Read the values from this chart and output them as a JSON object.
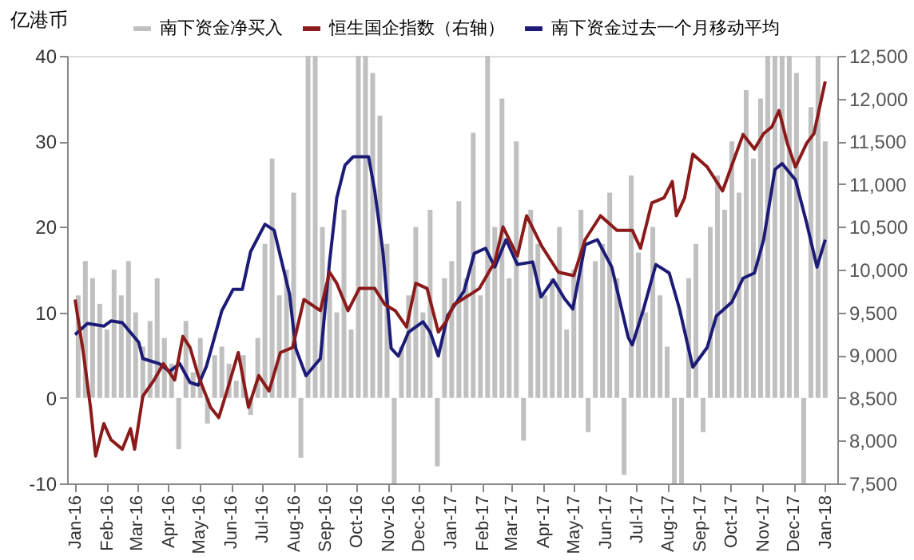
{
  "chart_data": {
    "type": "bar",
    "ylabel": "亿港币",
    "legend": "top",
    "grid": false,
    "ylim": [
      -10,
      40
    ],
    "yticks": [
      -10,
      0,
      10,
      20,
      30,
      40
    ],
    "y2lim": [
      7500,
      12500
    ],
    "y2ticks": [
      {
        "value": 7500,
        "label": "7,500"
      },
      {
        "value": 8000,
        "label": "8,000"
      },
      {
        "value": 8500,
        "label": "8,500"
      },
      {
        "value": 9000,
        "label": "9,000"
      },
      {
        "value": 9500,
        "label": "9,500"
      },
      {
        "value": 10000,
        "label": "10,000"
      },
      {
        "value": 10500,
        "label": "10,500"
      },
      {
        "value": 11000,
        "label": "11,000"
      },
      {
        "value": 11500,
        "label": "11,500"
      },
      {
        "value": 12000,
        "label": "12,000"
      },
      {
        "value": 12500,
        "label": "12,500"
      }
    ],
    "xlim": [
      "2016-01-01",
      "2018-01-05"
    ],
    "xticks": [
      {
        "value": "2016-01-01",
        "label": "Jan-16"
      },
      {
        "value": "2016-02-01",
        "label": "Feb-16"
      },
      {
        "value": "2016-03-01",
        "label": "Mar-16"
      },
      {
        "value": "2016-04-01",
        "label": "Apr-16"
      },
      {
        "value": "2016-05-01",
        "label": "May-16"
      },
      {
        "value": "2016-06-01",
        "label": "Jun-16"
      },
      {
        "value": "2016-07-01",
        "label": "Jul-16"
      },
      {
        "value": "2016-08-01",
        "label": "Aug-16"
      },
      {
        "value": "2016-09-01",
        "label": "Sep-16"
      },
      {
        "value": "2016-10-01",
        "label": "Oct-16"
      },
      {
        "value": "2016-11-01",
        "label": "Nov-16"
      },
      {
        "value": "2016-12-01",
        "label": "Dec-16"
      },
      {
        "value": "2017-01-01",
        "label": "Jan-17"
      },
      {
        "value": "2017-02-01",
        "label": "Feb-17"
      },
      {
        "value": "2017-03-01",
        "label": "Mar-17"
      },
      {
        "value": "2017-04-01",
        "label": "Apr-17"
      },
      {
        "value": "2017-05-01",
        "label": "May-17"
      },
      {
        "value": "2017-06-01",
        "label": "Jun-17"
      },
      {
        "value": "2017-07-01",
        "label": "Jul-17"
      },
      {
        "value": "2017-08-01",
        "label": "Aug-17"
      },
      {
        "value": "2017-09-01",
        "label": "Sep-17"
      },
      {
        "value": "2017-10-01",
        "label": "Oct-17"
      },
      {
        "value": "2017-11-01",
        "label": "Nov-17"
      },
      {
        "value": "2017-12-01",
        "label": "Dec-17"
      },
      {
        "value": "2018-01-01",
        "label": "Jan-18"
      }
    ],
    "series": [
      {
        "name": "南下资金净买入",
        "color": "#c0c0c0",
        "x": [
          "2016-01-04",
          "2016-01-11",
          "2016-01-18",
          "2016-01-25",
          "2016-02-01",
          "2016-02-08",
          "2016-02-15",
          "2016-02-22",
          "2016-02-29",
          "2016-03-07",
          "2016-03-14",
          "2016-03-21",
          "2016-03-28",
          "2016-04-04",
          "2016-04-11",
          "2016-04-18",
          "2016-04-25",
          "2016-05-02",
          "2016-05-09",
          "2016-05-16",
          "2016-05-23",
          "2016-05-30",
          "2016-06-06",
          "2016-06-13",
          "2016-06-20",
          "2016-06-27",
          "2016-07-04",
          "2016-07-11",
          "2016-07-18",
          "2016-07-25",
          "2016-08-01",
          "2016-08-08",
          "2016-08-15",
          "2016-08-22",
          "2016-08-29",
          "2016-09-05",
          "2016-09-12",
          "2016-09-19",
          "2016-09-26",
          "2016-10-03",
          "2016-10-10",
          "2016-10-17",
          "2016-10-24",
          "2016-10-31",
          "2016-11-07",
          "2016-11-14",
          "2016-11-21",
          "2016-11-28",
          "2016-12-05",
          "2016-12-12",
          "2016-12-19",
          "2016-12-26",
          "2017-01-02",
          "2017-01-09",
          "2017-01-16",
          "2017-01-23",
          "2017-01-30",
          "2017-02-06",
          "2017-02-13",
          "2017-02-20",
          "2017-02-27",
          "2017-03-06",
          "2017-03-13",
          "2017-03-20",
          "2017-03-27",
          "2017-04-03",
          "2017-04-10",
          "2017-04-17",
          "2017-04-24",
          "2017-05-01",
          "2017-05-08",
          "2017-05-15",
          "2017-05-22",
          "2017-05-29",
          "2017-06-05",
          "2017-06-12",
          "2017-06-19",
          "2017-06-26",
          "2017-07-03",
          "2017-07-10",
          "2017-07-17",
          "2017-07-24",
          "2017-07-31",
          "2017-08-07",
          "2017-08-14",
          "2017-08-21",
          "2017-08-28",
          "2017-09-04",
          "2017-09-11",
          "2017-09-18",
          "2017-09-25",
          "2017-10-02",
          "2017-10-09",
          "2017-10-16",
          "2017-10-23",
          "2017-10-30",
          "2017-11-06",
          "2017-11-13",
          "2017-11-20",
          "2017-11-27",
          "2017-12-04",
          "2017-12-11",
          "2017-12-18",
          "2017-12-25",
          "2018-01-01"
        ],
        "values": [
          12,
          16,
          14,
          11,
          8,
          15,
          12,
          16,
          10,
          6,
          9,
          14,
          7,
          4,
          -6,
          9,
          3,
          7,
          -3,
          5,
          6,
          4,
          2,
          5,
          -2,
          7,
          18,
          28,
          12,
          15,
          24,
          -7,
          40,
          40,
          20,
          14,
          10,
          22,
          8,
          40,
          40,
          38,
          33,
          18,
          -10,
          6,
          12,
          20,
          10,
          22,
          -8,
          14,
          16,
          23,
          14,
          31,
          12,
          40,
          20,
          35,
          14,
          30,
          -5,
          22,
          18,
          12,
          14,
          20,
          8,
          15,
          22,
          -4,
          16,
          18,
          24,
          14,
          -9,
          26,
          17,
          10,
          20,
          12,
          6,
          -10,
          -10,
          14,
          18,
          -4,
          20,
          26,
          22,
          30,
          24,
          36,
          28,
          35,
          40,
          40,
          40,
          40,
          38,
          -10,
          34,
          40,
          30
        ]
      },
      {
        "name": "恒生国企指数（右轴）",
        "type": "line",
        "axis": "y2",
        "color": "#8b1a1a",
        "x": [
          "2016-01-01",
          "2016-01-09",
          "2016-01-16",
          "2016-01-21",
          "2016-01-29",
          "2016-02-05",
          "2016-02-16",
          "2016-02-24",
          "2016-02-28",
          "2016-03-07",
          "2016-03-18",
          "2016-03-27",
          "2016-04-07",
          "2016-04-15",
          "2016-04-22",
          "2016-04-30",
          "2016-05-12",
          "2016-05-20",
          "2016-05-28",
          "2016-06-08",
          "2016-06-18",
          "2016-06-28",
          "2016-07-08",
          "2016-07-19",
          "2016-07-31",
          "2016-08-11",
          "2016-08-27",
          "2016-09-05",
          "2016-09-12",
          "2016-09-23",
          "2016-10-04",
          "2016-10-19",
          "2016-10-29",
          "2016-11-08",
          "2016-11-19",
          "2016-11-28",
          "2016-12-09",
          "2016-12-20",
          "2016-12-28",
          "2017-01-04",
          "2017-01-20",
          "2017-01-29",
          "2017-02-13",
          "2017-02-21",
          "2017-03-07",
          "2017-03-16",
          "2017-03-31",
          "2017-04-16",
          "2017-05-01",
          "2017-05-12",
          "2017-05-27",
          "2017-06-12",
          "2017-06-27",
          "2017-07-05",
          "2017-07-16",
          "2017-07-28",
          "2017-08-05",
          "2017-08-09",
          "2017-08-17",
          "2017-08-25",
          "2017-09-08",
          "2017-09-23",
          "2017-10-02",
          "2017-10-13",
          "2017-10-24",
          "2017-11-02",
          "2017-11-10",
          "2017-11-17",
          "2017-11-25",
          "2017-12-03",
          "2017-12-14",
          "2017-12-21",
          "2018-01-01"
        ],
        "values": [
          9650,
          9030,
          8390,
          7820,
          8200,
          8010,
          7900,
          8140,
          7900,
          8520,
          8710,
          8900,
          8710,
          9220,
          9090,
          8760,
          8390,
          8270,
          8580,
          9030,
          8390,
          8760,
          8580,
          9030,
          9090,
          9650,
          9520,
          9970,
          9840,
          9520,
          9780,
          9780,
          9590,
          9520,
          9330,
          9840,
          9780,
          9270,
          9400,
          9590,
          9710,
          9780,
          10090,
          10500,
          10160,
          10630,
          10270,
          9970,
          9930,
          10350,
          10630,
          10460,
          10460,
          10250,
          10780,
          10840,
          11030,
          10630,
          10840,
          11350,
          11200,
          10920,
          11220,
          11580,
          11410,
          11590,
          11670,
          11860,
          11480,
          11200,
          11480,
          11590,
          12200
        ]
      },
      {
        "name": "南下资金过去一个月移动平均",
        "type": "line",
        "color": "#1c1c78",
        "x": [
          "2016-01-01",
          "2016-01-13",
          "2016-01-29",
          "2016-02-05",
          "2016-02-16",
          "2016-03-03",
          "2016-03-07",
          "2016-03-23",
          "2016-04-02",
          "2016-04-12",
          "2016-04-22",
          "2016-04-30",
          "2016-05-08",
          "2016-05-23",
          "2016-06-03",
          "2016-06-12",
          "2016-06-20",
          "2016-07-04",
          "2016-07-13",
          "2016-07-28",
          "2016-08-03",
          "2016-08-13",
          "2016-08-27",
          "2016-09-05",
          "2016-09-12",
          "2016-09-20",
          "2016-09-28",
          "2016-10-13",
          "2016-10-19",
          "2016-10-27",
          "2016-11-04",
          "2016-11-11",
          "2016-11-21",
          "2016-12-05",
          "2016-12-12",
          "2016-12-20",
          "2016-12-29",
          "2017-01-14",
          "2017-01-24",
          "2017-02-04",
          "2017-02-13",
          "2017-02-24",
          "2017-03-07",
          "2017-03-22",
          "2017-03-30",
          "2017-04-11",
          "2017-04-22",
          "2017-04-30",
          "2017-05-12",
          "2017-05-24",
          "2017-06-07",
          "2017-06-23",
          "2017-06-27",
          "2017-07-08",
          "2017-07-20",
          "2017-08-02",
          "2017-08-12",
          "2017-08-25",
          "2017-09-08",
          "2017-09-17",
          "2017-10-02",
          "2017-10-13",
          "2017-10-24",
          "2017-11-02",
          "2017-11-13",
          "2017-11-20",
          "2017-12-03",
          "2017-12-14",
          "2017-12-24",
          "2018-01-01"
        ],
        "values": [
          7.4,
          8.7,
          8.4,
          9.0,
          8.8,
          6.5,
          4.6,
          4.0,
          3.1,
          4.0,
          1.8,
          1.5,
          3.7,
          10.2,
          12.7,
          12.7,
          17.1,
          20.3,
          19.6,
          12.1,
          5.8,
          2.6,
          4.6,
          15.9,
          23.4,
          27.2,
          28.2,
          28.2,
          24.2,
          17.1,
          5.8,
          4.9,
          7.7,
          8.9,
          7.7,
          4.9,
          9.6,
          12.5,
          16.9,
          17.5,
          15.3,
          18.5,
          15.6,
          15.9,
          11.8,
          13.8,
          11.6,
          10.4,
          17.9,
          18.5,
          15.3,
          7.1,
          6.2,
          10.4,
          15.6,
          14.6,
          10.4,
          3.6,
          5.9,
          9.6,
          11.2,
          14.0,
          14.6,
          18.5,
          26.7,
          27.4,
          25.5,
          20.4,
          15.3,
          18.5
        ]
      }
    ]
  }
}
